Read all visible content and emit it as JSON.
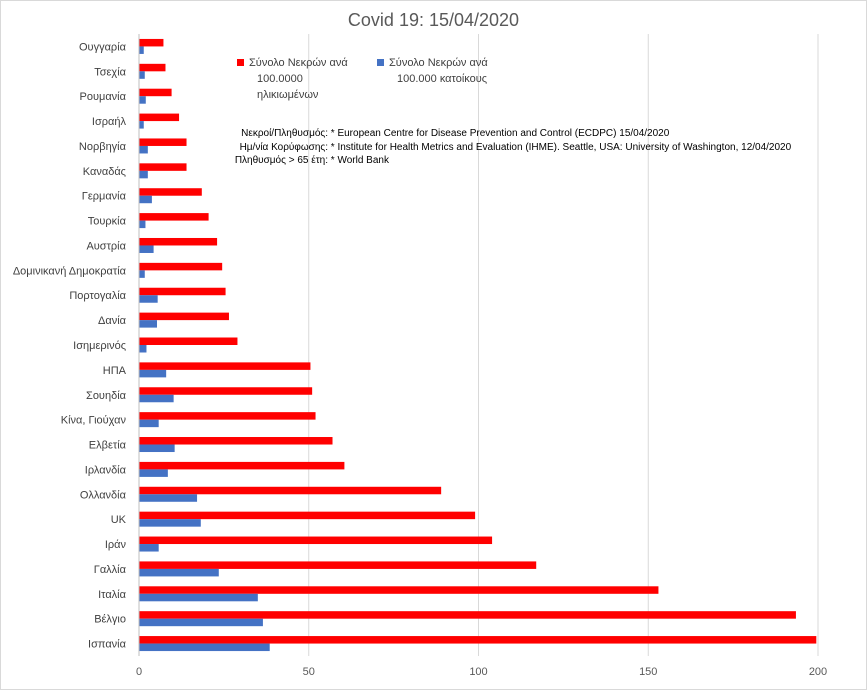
{
  "chart_data": {
    "type": "bar",
    "orientation": "horizontal",
    "title": "Covid 19: 15/04/2020",
    "categories": [
      "Ουγγαρία",
      "Τσεχία",
      "Ρουμανία",
      "Ισραήλ",
      "Νορβηγία",
      "Καναδάς",
      "Γερμανία",
      "Τουρκία",
      "Αυστρία",
      "Δομινικανή Δημοκρατία",
      "Πορτογαλία",
      "Δανία",
      "Ισημερινός",
      "ΗΠΑ",
      "Σουηδία",
      "Κίνα, Γιούχαν",
      "Ελβετία",
      "Ιρλανδία",
      "Ολλανδία",
      "UK",
      "Ιράν",
      "Γαλλία",
      "Ιταλία",
      "Βέλγιο",
      "Ισπανία"
    ],
    "series": [
      {
        "name": "Σύνολο Νεκρών ανά 100.0000 ηλικιωμένων",
        "color": "#ff0000",
        "values": [
          7.2,
          7.8,
          9.6,
          11.8,
          14.0,
          14.0,
          18.5,
          20.5,
          23.0,
          24.5,
          25.5,
          26.5,
          29.0,
          50.5,
          51.0,
          52.0,
          57.0,
          60.5,
          89.0,
          99.0,
          104.0,
          117.0,
          153.0,
          193.5,
          199.5
        ]
      },
      {
        "name": "Σύνολο Νεκρών ανά 100.000 κατοίκους",
        "color": "#4472c4",
        "values": [
          1.4,
          1.7,
          2.0,
          1.4,
          2.6,
          2.6,
          3.8,
          1.9,
          4.3,
          1.7,
          5.5,
          5.3,
          2.2,
          8.0,
          10.2,
          5.8,
          10.5,
          8.5,
          17.1,
          18.2,
          5.8,
          23.5,
          35.0,
          36.5,
          38.5
        ]
      }
    ],
    "xlim": [
      0,
      200
    ],
    "xticks": [
      0,
      50,
      100,
      150,
      200
    ],
    "legend_position": "top-left inside plot",
    "grid": true,
    "notes": [
      {
        "label": "Νεκροί/Πληθυσμός:",
        "source": "* European Centre for Disease Prevention and Control (ECDPC) 15/04/2020"
      },
      {
        "label": "Ημ/νία Κορύφωσης:",
        "source": "* Institute for Health Metrics and Evaluation (IHME).  Seattle, USA: University of Washington, 12/04/2020"
      },
      {
        "label": "Πληθυσμός > 65 έτη:",
        "source": "* World Bank"
      }
    ]
  }
}
